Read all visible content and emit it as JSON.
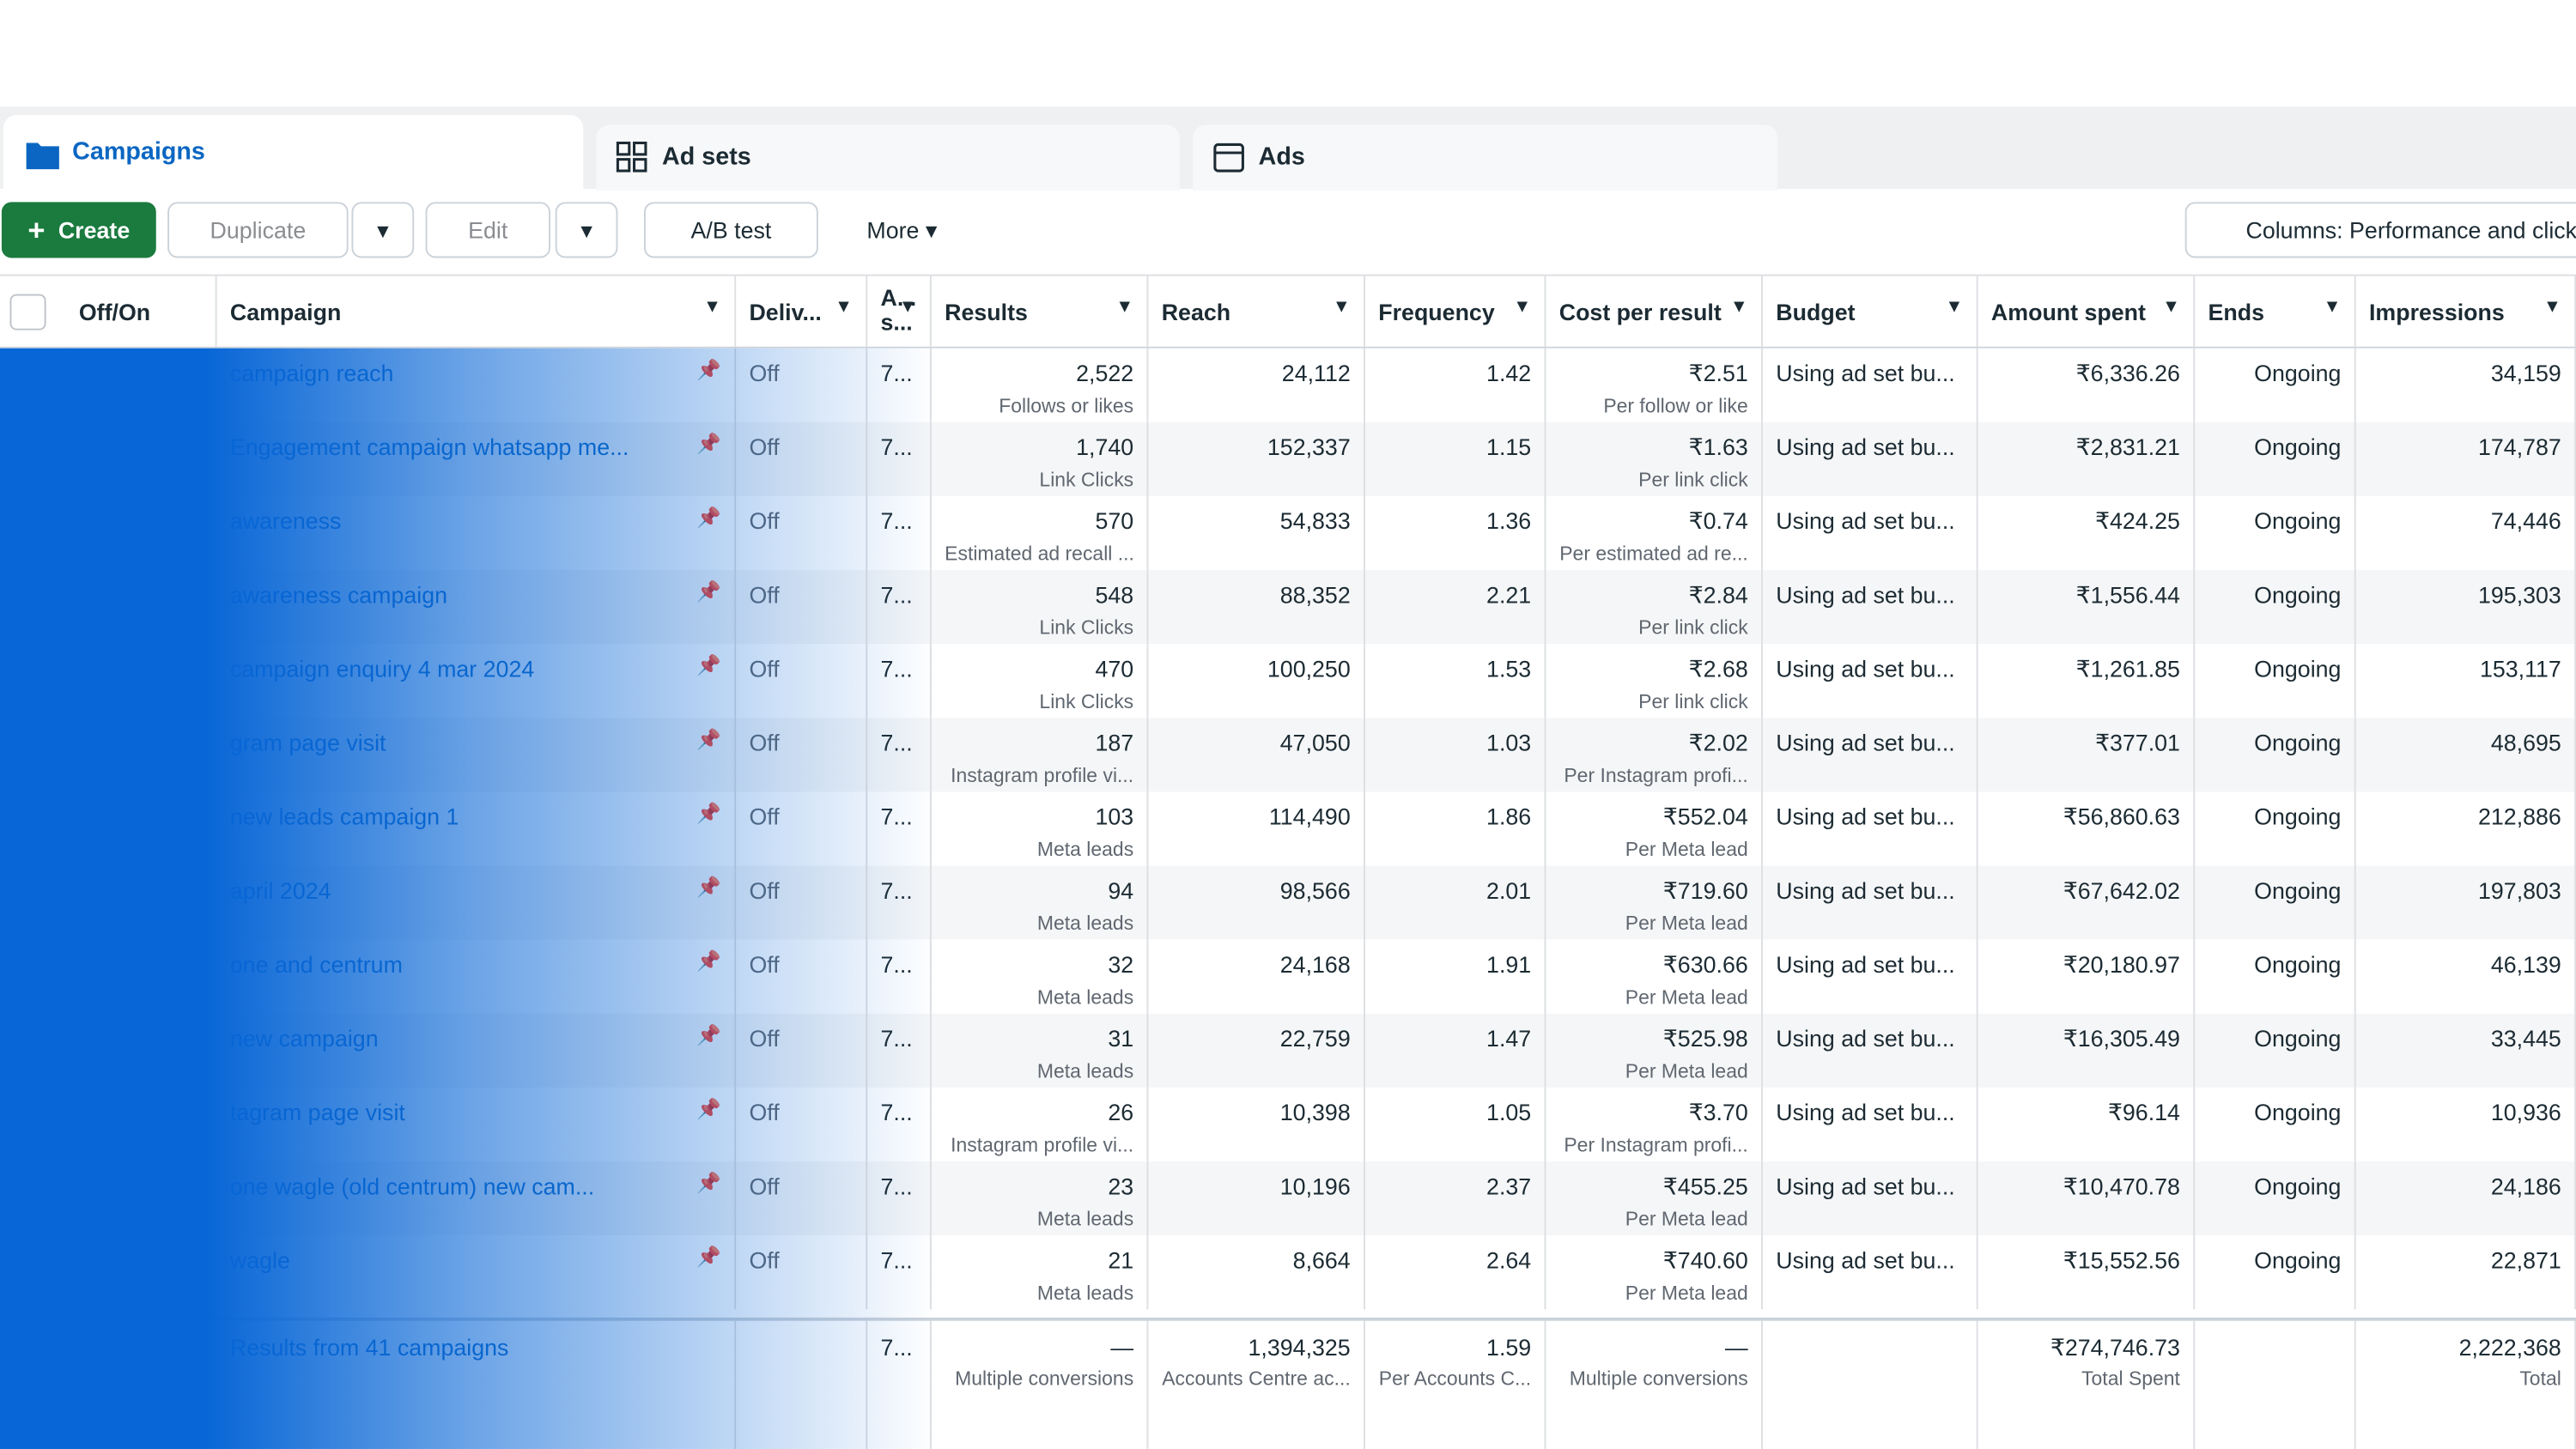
{
  "tabs": [
    "Campaigns",
    "Ad sets",
    "Ads"
  ],
  "toolbar": {
    "create": "Create",
    "duplicate": "Duplicate",
    "edit": "Edit",
    "ab_test": "A/B test",
    "more": "More",
    "columns": "Columns: Performance and clicks"
  },
  "table": {
    "headers": [
      "Off/On",
      "Campaign",
      "Deliv...",
      "A...\ns...",
      "Results",
      "Reach",
      "Frequency",
      "Cost per result",
      "Budget",
      "Amount spent",
      "Ends",
      "Impressions"
    ],
    "rows": [
      [
        "campaign reach",
        "Off",
        "7...",
        "2,522",
        "Follows or likes",
        "24,112",
        "1.42",
        "₹2.51",
        "Per follow or like",
        "Using ad set bu...",
        "₹6,336.26",
        "Ongoing",
        "34,159"
      ],
      [
        "Engagement campaign whatsapp me...",
        "Off",
        "7...",
        "1,740",
        "Link Clicks",
        "152,337",
        "1.15",
        "₹1.63",
        "Per link click",
        "Using ad set bu...",
        "₹2,831.21",
        "Ongoing",
        "174,787"
      ],
      [
        "awareness",
        "Off",
        "7...",
        "570",
        "Estimated ad recall ...",
        "54,833",
        "1.36",
        "₹0.74",
        "Per estimated ad re...",
        "Using ad set bu...",
        "₹424.25",
        "Ongoing",
        "74,446"
      ],
      [
        "awareness campaign",
        "Off",
        "7...",
        "548",
        "Link Clicks",
        "88,352",
        "2.21",
        "₹2.84",
        "Per link click",
        "Using ad set bu...",
        "₹1,556.44",
        "Ongoing",
        "195,303"
      ],
      [
        "campaign enquiry 4 mar 2024",
        "Off",
        "7...",
        "470",
        "Link Clicks",
        "100,250",
        "1.53",
        "₹2.68",
        "Per link click",
        "Using ad set bu...",
        "₹1,261.85",
        "Ongoing",
        "153,117"
      ],
      [
        "gram page visit",
        "Off",
        "7...",
        "187",
        "Instagram profile vi...",
        "47,050",
        "1.03",
        "₹2.02",
        "Per Instagram profi...",
        "Using ad set bu...",
        "₹377.01",
        "Ongoing",
        "48,695"
      ],
      [
        "new leads campaign 1",
        "Off",
        "7...",
        "103",
        "Meta leads",
        "114,490",
        "1.86",
        "₹552.04",
        "Per Meta lead",
        "Using ad set bu...",
        "₹56,860.63",
        "Ongoing",
        "212,886"
      ],
      [
        "april 2024",
        "Off",
        "7...",
        "94",
        "Meta leads",
        "98,566",
        "2.01",
        "₹719.60",
        "Per Meta lead",
        "Using ad set bu...",
        "₹67,642.02",
        "Ongoing",
        "197,803"
      ],
      [
        "one and centrum",
        "Off",
        "7...",
        "32",
        "Meta leads",
        "24,168",
        "1.91",
        "₹630.66",
        "Per Meta lead",
        "Using ad set bu...",
        "₹20,180.97",
        "Ongoing",
        "46,139"
      ],
      [
        "new campaign",
        "Off",
        "7...",
        "31",
        "Meta leads",
        "22,759",
        "1.47",
        "₹525.98",
        "Per Meta lead",
        "Using ad set bu...",
        "₹16,305.49",
        "Ongoing",
        "33,445"
      ],
      [
        "tagram page visit",
        "Off",
        "7...",
        "26",
        "Instagram profile vi...",
        "10,398",
        "1.05",
        "₹3.70",
        "Per Instagram profi...",
        "Using ad set bu...",
        "₹96.14",
        "Ongoing",
        "10,936"
      ],
      [
        "one wagle (old centrum) new cam...",
        "Off",
        "7...",
        "23",
        "Meta leads",
        "10,196",
        "2.37",
        "₹455.25",
        "Per Meta lead",
        "Using ad set bu...",
        "₹10,470.78",
        "Ongoing",
        "24,186"
      ],
      [
        "wagle",
        "Off",
        "7...",
        "21",
        "Meta leads",
        "8,664",
        "2.64",
        "₹740.60",
        "Per Meta lead",
        "Using ad set bu...",
        "₹15,552.56",
        "Ongoing",
        "22,871"
      ]
    ],
    "total": {
      "campaign": "Results from 41 campaigns",
      "attribution": "7...",
      "results": "—",
      "results_sub": "Multiple conversions",
      "reach": "1,394,325",
      "reach_sub": "Accounts Centre ac...",
      "frequency": "1.59",
      "frequency_sub": "Per Accounts C...",
      "cost_per_result": "—",
      "cost_sub": "Multiple conversions",
      "amount_spent": "₹274,746.73",
      "amount_sub": "Total Spent",
      "impressions": "2,222,368",
      "impressions_sub": "Total"
    }
  }
}
